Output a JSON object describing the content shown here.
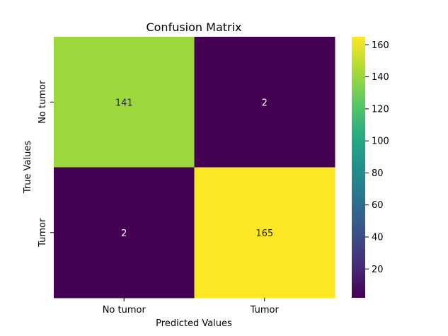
{
  "chart_data": {
    "type": "heatmap",
    "title": "Confusion Matrix",
    "xlabel": "Predicted Values",
    "ylabel": "True Values",
    "x_categories": [
      "No tumor",
      "Tumor"
    ],
    "y_categories": [
      "No tumor",
      "Tumor"
    ],
    "values": [
      [
        141,
        2
      ],
      [
        2,
        165
      ]
    ],
    "colormap": "viridis",
    "colorbar": {
      "range": [
        2,
        165
      ],
      "ticks": [
        20,
        40,
        60,
        80,
        100,
        120,
        140,
        160
      ],
      "tick_labels": [
        "20",
        "40",
        "60",
        "80",
        "100",
        "120",
        "140",
        "160"
      ]
    },
    "annotations": true,
    "grid": false
  }
}
